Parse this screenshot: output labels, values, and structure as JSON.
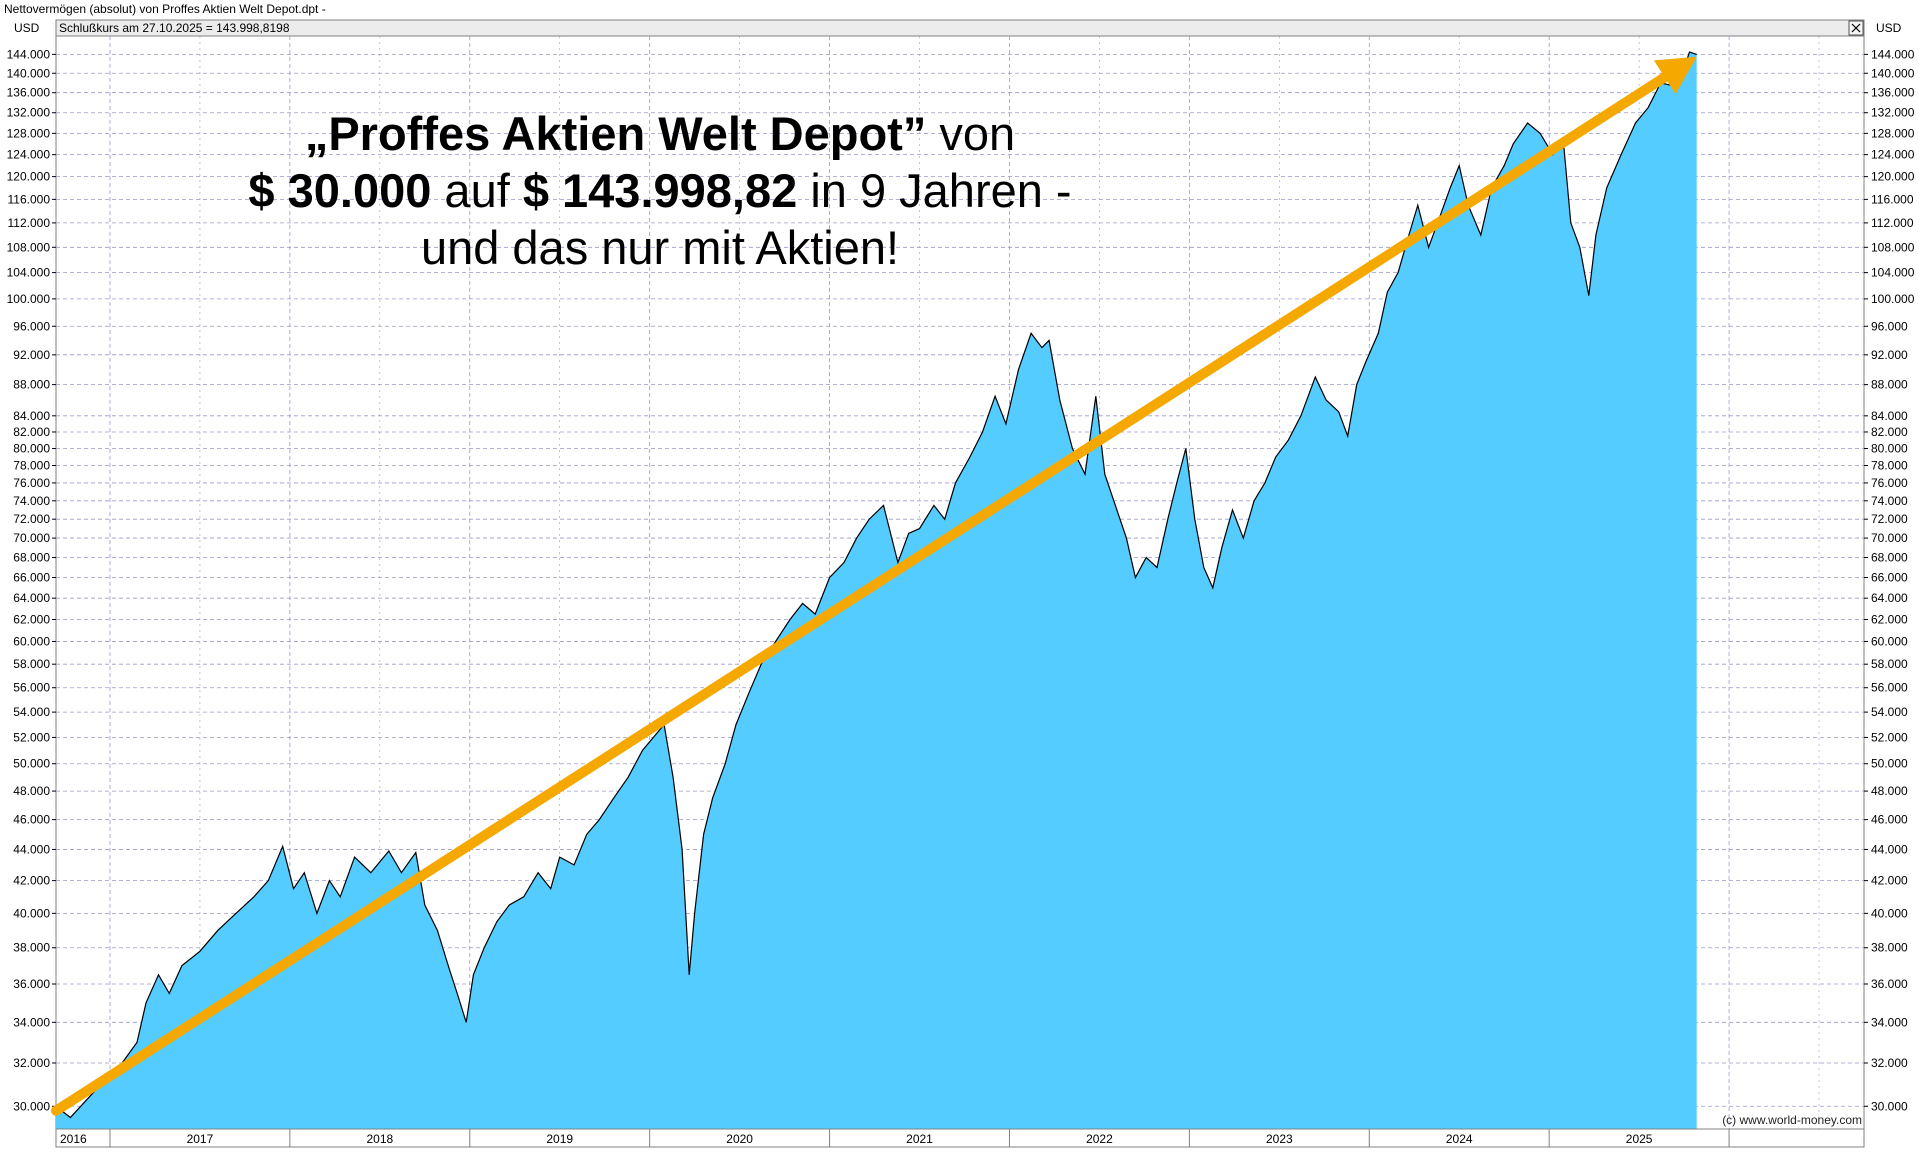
{
  "window_title": "Nettovermögen (absolut) von Proffes Aktien Welt Depot.dpt -",
  "info_line": "Schlußkurs am 27.10.2025 = 143.998,8198",
  "close_icon": "close-icon",
  "currency_label": "USD",
  "credit": "(c) www.world-money.com",
  "headline": {
    "line1_bold": "„Proffes Aktien Welt Depot”",
    "line1_rest": " von",
    "line2_bold1": "$ 30.000",
    "line2_mid": " auf ",
    "line2_bold2": "$ 143.998,82",
    "line2_rest": " in 9 Jahren -",
    "line3": "und das nur mit Aktien!"
  },
  "colors": {
    "area_fill": "#55ccff",
    "line": "#000000",
    "trend_arrow": "#f5a800",
    "grid": "#9999cc"
  },
  "chart_data": {
    "type": "area",
    "scale": "log",
    "currency": "USD",
    "ylim": [
      29000,
      148000
    ],
    "y_ticks": [
      30000,
      32000,
      34000,
      36000,
      38000,
      40000,
      42000,
      44000,
      46000,
      48000,
      50000,
      52000,
      54000,
      56000,
      58000,
      60000,
      62000,
      64000,
      66000,
      68000,
      70000,
      72000,
      74000,
      76000,
      78000,
      80000,
      82000,
      84000,
      88000,
      92000,
      96000,
      100000,
      104000,
      108000,
      112000,
      116000,
      120000,
      124000,
      128000,
      132000,
      136000,
      140000,
      144000
    ],
    "y_tick_labels": [
      "30.000",
      "32.000",
      "34.000",
      "36.000",
      "38.000",
      "40.000",
      "42.000",
      "44.000",
      "46.000",
      "48.000",
      "50.000",
      "52.000",
      "54.000",
      "56.000",
      "58.000",
      "60.000",
      "62.000",
      "64.000",
      "66.000",
      "68.000",
      "70.000",
      "72.000",
      "74.000",
      "76.000",
      "78.000",
      "80.000",
      "82.000",
      "84.000",
      "88.000",
      "92.000",
      "96.000",
      "100.000",
      "104.000",
      "108.000",
      "112.000",
      "116.000",
      "120.000",
      "124.000",
      "128.000",
      "132.000",
      "136.000",
      "140.000",
      "144.000"
    ],
    "xlim": [
      2016.7,
      2026.75
    ],
    "years": [
      {
        "label": "2016",
        "start": 2016.7,
        "end": 2017.0
      },
      {
        "label": "2017",
        "start": 2017.0,
        "end": 2018.0
      },
      {
        "label": "2018",
        "start": 2018.0,
        "end": 2019.0
      },
      {
        "label": "2019",
        "start": 2019.0,
        "end": 2020.0
      },
      {
        "label": "2020",
        "start": 2020.0,
        "end": 2021.0
      },
      {
        "label": "2021",
        "start": 2021.0,
        "end": 2022.0
      },
      {
        "label": "2022",
        "start": 2022.0,
        "end": 2023.0
      },
      {
        "label": "2023",
        "start": 2023.0,
        "end": 2024.0
      },
      {
        "label": "2024",
        "start": 2024.0,
        "end": 2025.0
      },
      {
        "label": "2025",
        "start": 2025.0,
        "end": 2026.0
      },
      {
        "label": "",
        "start": 2026.0,
        "end": 2026.75
      }
    ],
    "series": [
      {
        "values": [
          [
            2016.7,
            30000
          ],
          [
            2016.78,
            29500
          ],
          [
            2016.86,
            30200
          ],
          [
            2016.95,
            31000
          ],
          [
            2017.05,
            31800
          ],
          [
            2017.15,
            33000
          ],
          [
            2017.2,
            35000
          ],
          [
            2017.27,
            36500
          ],
          [
            2017.33,
            35500
          ],
          [
            2017.4,
            37000
          ],
          [
            2017.5,
            37800
          ],
          [
            2017.6,
            39000
          ],
          [
            2017.7,
            40000
          ],
          [
            2017.8,
            41000
          ],
          [
            2017.88,
            42000
          ],
          [
            2017.96,
            44200
          ],
          [
            2018.02,
            41500
          ],
          [
            2018.08,
            42500
          ],
          [
            2018.15,
            40000
          ],
          [
            2018.22,
            42000
          ],
          [
            2018.28,
            41000
          ],
          [
            2018.36,
            43500
          ],
          [
            2018.45,
            42500
          ],
          [
            2018.55,
            43900
          ],
          [
            2018.62,
            42500
          ],
          [
            2018.7,
            43800
          ],
          [
            2018.75,
            40500
          ],
          [
            2018.82,
            39000
          ],
          [
            2018.88,
            37000
          ],
          [
            2018.93,
            35500
          ],
          [
            2018.98,
            34000
          ],
          [
            2019.02,
            36500
          ],
          [
            2019.08,
            38000
          ],
          [
            2019.15,
            39500
          ],
          [
            2019.22,
            40500
          ],
          [
            2019.3,
            41000
          ],
          [
            2019.38,
            42500
          ],
          [
            2019.45,
            41500
          ],
          [
            2019.5,
            43500
          ],
          [
            2019.58,
            43000
          ],
          [
            2019.65,
            45000
          ],
          [
            2019.72,
            46000
          ],
          [
            2019.8,
            47500
          ],
          [
            2019.88,
            49000
          ],
          [
            2019.96,
            51000
          ],
          [
            2020.08,
            53000
          ],
          [
            2020.13,
            49000
          ],
          [
            2020.18,
            44000
          ],
          [
            2020.22,
            36500
          ],
          [
            2020.25,
            40000
          ],
          [
            2020.3,
            45000
          ],
          [
            2020.35,
            47500
          ],
          [
            2020.42,
            50000
          ],
          [
            2020.48,
            53000
          ],
          [
            2020.55,
            55500
          ],
          [
            2020.62,
            58000
          ],
          [
            2020.7,
            60000
          ],
          [
            2020.78,
            62000
          ],
          [
            2020.85,
            63500
          ],
          [
            2020.92,
            62500
          ],
          [
            2021.0,
            66000
          ],
          [
            2021.08,
            67500
          ],
          [
            2021.15,
            70000
          ],
          [
            2021.22,
            72000
          ],
          [
            2021.3,
            73500
          ],
          [
            2021.38,
            67500
          ],
          [
            2021.44,
            70500
          ],
          [
            2021.5,
            71000
          ],
          [
            2021.58,
            73500
          ],
          [
            2021.64,
            72000
          ],
          [
            2021.7,
            76000
          ],
          [
            2021.78,
            79000
          ],
          [
            2021.85,
            82000
          ],
          [
            2021.92,
            86500
          ],
          [
            2021.98,
            83000
          ],
          [
            2022.05,
            90000
          ],
          [
            2022.12,
            95000
          ],
          [
            2022.18,
            93000
          ],
          [
            2022.22,
            94000
          ],
          [
            2022.28,
            86000
          ],
          [
            2022.35,
            80000
          ],
          [
            2022.42,
            77000
          ],
          [
            2022.48,
            86500
          ],
          [
            2022.53,
            77000
          ],
          [
            2022.58,
            74000
          ],
          [
            2022.65,
            70000
          ],
          [
            2022.7,
            66000
          ],
          [
            2022.76,
            68000
          ],
          [
            2022.82,
            67000
          ],
          [
            2022.88,
            72000
          ],
          [
            2022.93,
            76000
          ],
          [
            2022.98,
            80000
          ],
          [
            2023.03,
            72000
          ],
          [
            2023.08,
            67000
          ],
          [
            2023.13,
            65000
          ],
          [
            2023.18,
            69000
          ],
          [
            2023.24,
            73000
          ],
          [
            2023.3,
            70000
          ],
          [
            2023.36,
            74000
          ],
          [
            2023.42,
            76000
          ],
          [
            2023.48,
            79000
          ],
          [
            2023.55,
            81000
          ],
          [
            2023.62,
            84000
          ],
          [
            2023.7,
            89000
          ],
          [
            2023.76,
            86000
          ],
          [
            2023.83,
            84500
          ],
          [
            2023.88,
            81500
          ],
          [
            2023.93,
            88000
          ],
          [
            2023.98,
            91000
          ],
          [
            2024.05,
            95000
          ],
          [
            2024.1,
            101000
          ],
          [
            2024.16,
            104000
          ],
          [
            2024.22,
            110000
          ],
          [
            2024.27,
            115000
          ],
          [
            2024.33,
            108000
          ],
          [
            2024.38,
            112000
          ],
          [
            2024.45,
            118000
          ],
          [
            2024.5,
            122000
          ],
          [
            2024.55,
            115000
          ],
          [
            2024.62,
            110000
          ],
          [
            2024.68,
            118000
          ],
          [
            2024.75,
            122000
          ],
          [
            2024.8,
            126000
          ],
          [
            2024.88,
            130000
          ],
          [
            2024.95,
            128000
          ],
          [
            2025.02,
            124000
          ],
          [
            2025.08,
            126000
          ],
          [
            2025.12,
            112000
          ],
          [
            2025.17,
            108000
          ],
          [
            2025.22,
            100500
          ],
          [
            2025.26,
            110000
          ],
          [
            2025.32,
            118000
          ],
          [
            2025.4,
            124000
          ],
          [
            2025.48,
            130000
          ],
          [
            2025.55,
            133000
          ],
          [
            2025.62,
            138000
          ],
          [
            2025.68,
            137500
          ],
          [
            2025.74,
            140000
          ],
          [
            2025.78,
            144500
          ],
          [
            2025.82,
            143999
          ]
        ]
      }
    ],
    "trend_arrow": {
      "from": [
        2016.7,
        29800
      ],
      "to": [
        2025.82,
        143500
      ]
    }
  }
}
